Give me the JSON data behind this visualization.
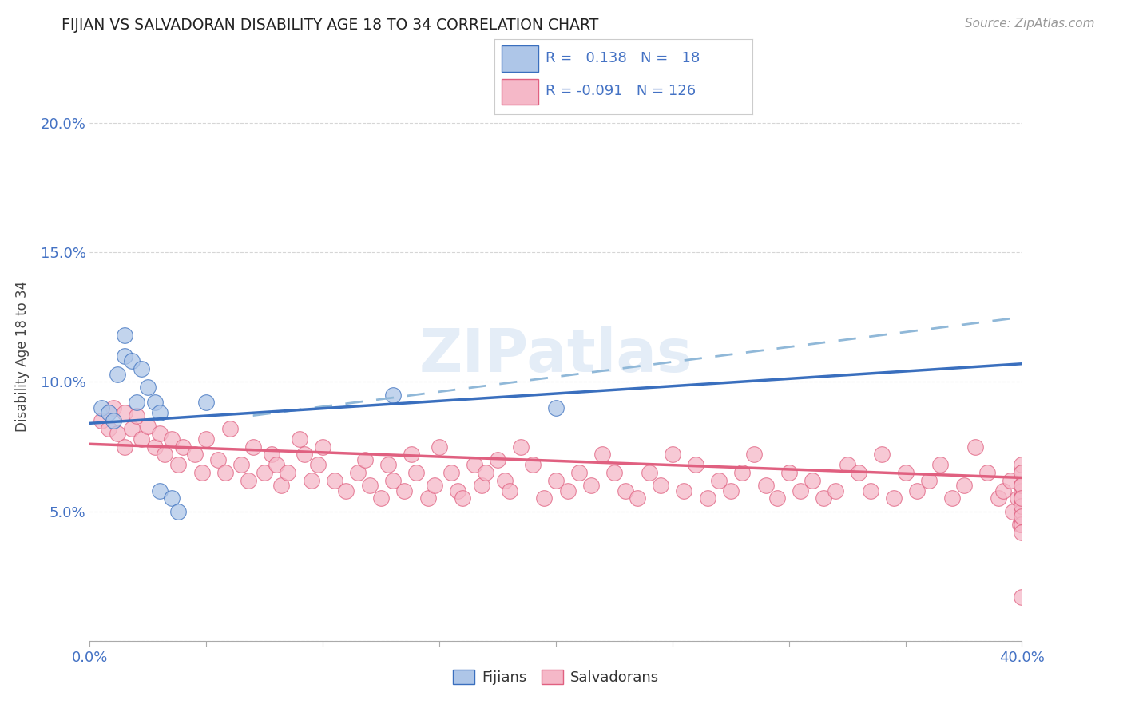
{
  "title": "FIJIAN VS SALVADORAN DISABILITY AGE 18 TO 34 CORRELATION CHART",
  "source_text": "Source: ZipAtlas.com",
  "ylabel": "Disability Age 18 to 34",
  "xlim": [
    0.0,
    0.4
  ],
  "ylim": [
    0.0,
    0.22
  ],
  "xticks": [
    0.0,
    0.05,
    0.1,
    0.15,
    0.2,
    0.25,
    0.3,
    0.35,
    0.4
  ],
  "yticks": [
    0.0,
    0.05,
    0.1,
    0.15,
    0.2
  ],
  "fijian_color": "#aec6e8",
  "salvadoran_color": "#f5b8c8",
  "fijian_line_color": "#3a6fbe",
  "salvadoran_line_color": "#e06080",
  "dashed_line_color": "#90b8d8",
  "axis_color": "#4472c4",
  "grid_color": "#cccccc",
  "background_color": "#ffffff",
  "watermark": "ZIPatlas",
  "fijian_line_x0": 0.0,
  "fijian_line_y0": 0.084,
  "fijian_line_x1": 0.4,
  "fijian_line_y1": 0.107,
  "salvadoran_line_x0": 0.0,
  "salvadoran_line_y0": 0.076,
  "salvadoran_line_x1": 0.4,
  "salvadoran_line_y1": 0.063,
  "dashed_line_x0": 0.07,
  "dashed_line_y0": 0.087,
  "dashed_line_x1": 0.4,
  "dashed_line_y1": 0.125,
  "legend_r_fijian": " 0.138",
  "legend_n_fijian": " 18",
  "legend_r_salvadoran": "-0.091",
  "legend_n_salvadoran": "126",
  "fijian_x": [
    0.005,
    0.008,
    0.01,
    0.012,
    0.015,
    0.015,
    0.018,
    0.02,
    0.022,
    0.025,
    0.028,
    0.03,
    0.03,
    0.035,
    0.038,
    0.05,
    0.13,
    0.2
  ],
  "fijian_y": [
    0.09,
    0.088,
    0.085,
    0.103,
    0.118,
    0.11,
    0.108,
    0.092,
    0.105,
    0.098,
    0.092,
    0.088,
    0.058,
    0.055,
    0.05,
    0.092,
    0.095,
    0.09
  ],
  "salvadoran_x": [
    0.005,
    0.008,
    0.01,
    0.012,
    0.015,
    0.015,
    0.018,
    0.02,
    0.022,
    0.025,
    0.028,
    0.03,
    0.032,
    0.035,
    0.038,
    0.04,
    0.045,
    0.048,
    0.05,
    0.055,
    0.058,
    0.06,
    0.065,
    0.068,
    0.07,
    0.075,
    0.078,
    0.08,
    0.082,
    0.085,
    0.09,
    0.092,
    0.095,
    0.098,
    0.1,
    0.105,
    0.11,
    0.115,
    0.118,
    0.12,
    0.125,
    0.128,
    0.13,
    0.135,
    0.138,
    0.14,
    0.145,
    0.148,
    0.15,
    0.155,
    0.158,
    0.16,
    0.165,
    0.168,
    0.17,
    0.175,
    0.178,
    0.18,
    0.185,
    0.19,
    0.195,
    0.2,
    0.205,
    0.21,
    0.215,
    0.22,
    0.225,
    0.23,
    0.235,
    0.24,
    0.245,
    0.25,
    0.255,
    0.26,
    0.265,
    0.27,
    0.275,
    0.28,
    0.285,
    0.29,
    0.295,
    0.3,
    0.305,
    0.31,
    0.315,
    0.32,
    0.325,
    0.33,
    0.335,
    0.34,
    0.345,
    0.35,
    0.355,
    0.36,
    0.365,
    0.37,
    0.375,
    0.38,
    0.385,
    0.39,
    0.392,
    0.395,
    0.396,
    0.398,
    0.399,
    0.4,
    0.4,
    0.4,
    0.4,
    0.4,
    0.4,
    0.4,
    0.4,
    0.4,
    0.4,
    0.4,
    0.4,
    0.4,
    0.4,
    0.4,
    0.4,
    0.4,
    0.4,
    0.4,
    0.4,
    0.4
  ],
  "salvadoran_y": [
    0.085,
    0.082,
    0.09,
    0.08,
    0.088,
    0.075,
    0.082,
    0.087,
    0.078,
    0.083,
    0.075,
    0.08,
    0.072,
    0.078,
    0.068,
    0.075,
    0.072,
    0.065,
    0.078,
    0.07,
    0.065,
    0.082,
    0.068,
    0.062,
    0.075,
    0.065,
    0.072,
    0.068,
    0.06,
    0.065,
    0.078,
    0.072,
    0.062,
    0.068,
    0.075,
    0.062,
    0.058,
    0.065,
    0.07,
    0.06,
    0.055,
    0.068,
    0.062,
    0.058,
    0.072,
    0.065,
    0.055,
    0.06,
    0.075,
    0.065,
    0.058,
    0.055,
    0.068,
    0.06,
    0.065,
    0.07,
    0.062,
    0.058,
    0.075,
    0.068,
    0.055,
    0.062,
    0.058,
    0.065,
    0.06,
    0.072,
    0.065,
    0.058,
    0.055,
    0.065,
    0.06,
    0.072,
    0.058,
    0.068,
    0.055,
    0.062,
    0.058,
    0.065,
    0.072,
    0.06,
    0.055,
    0.065,
    0.058,
    0.062,
    0.055,
    0.058,
    0.068,
    0.065,
    0.058,
    0.072,
    0.055,
    0.065,
    0.058,
    0.062,
    0.068,
    0.055,
    0.06,
    0.075,
    0.065,
    0.055,
    0.058,
    0.062,
    0.05,
    0.055,
    0.045,
    0.065,
    0.058,
    0.05,
    0.068,
    0.055,
    0.045,
    0.06,
    0.055,
    0.048,
    0.065,
    0.058,
    0.05,
    0.06,
    0.055,
    0.045,
    0.052,
    0.06,
    0.042,
    0.055,
    0.048,
    0.017
  ]
}
